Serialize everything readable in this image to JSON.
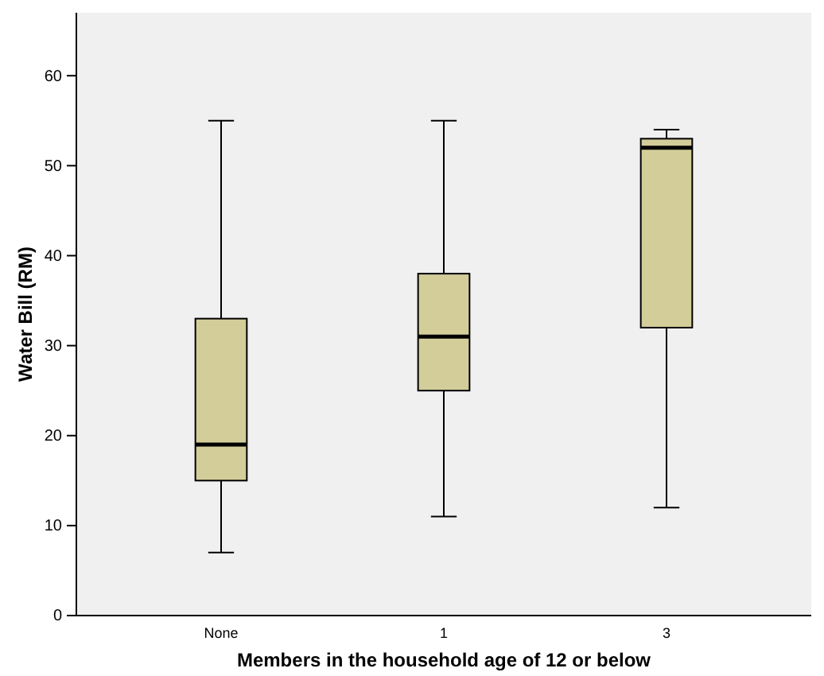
{
  "chart_data": {
    "type": "box",
    "xlabel": "Members in the household age of 12 or below",
    "ylabel": "Water Bill (RM)",
    "categories": [
      "None",
      "1",
      "3"
    ],
    "ylim": [
      0,
      67
    ],
    "yticks": [
      0,
      10,
      20,
      30,
      40,
      50,
      60
    ],
    "grid": false,
    "color": "#d3cd9a",
    "boxes": [
      {
        "low": 7,
        "q1": 15,
        "median": 19,
        "q3": 33,
        "high": 55
      },
      {
        "low": 11,
        "q1": 25,
        "median": 31,
        "q3": 38,
        "high": 55
      },
      {
        "low": 12,
        "q1": 32,
        "median": 52,
        "q3": 53,
        "high": 54
      }
    ]
  }
}
